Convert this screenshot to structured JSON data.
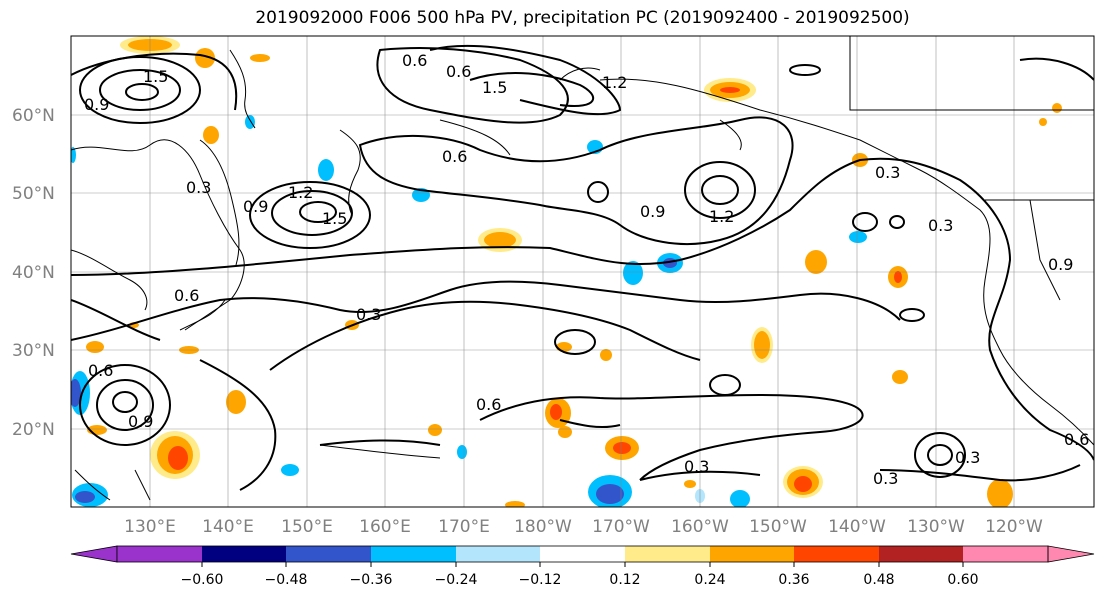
{
  "title": "2019092000 F006 500 hPa PV, precipitation PC (2019092400 - 2019092500)",
  "lat_labels": [
    "60°N",
    "50°N",
    "40°N",
    "30°N",
    "20°N"
  ],
  "lon_labels": [
    "130°E",
    "140°E",
    "150°E",
    "160°E",
    "170°E",
    "180°W",
    "170°W",
    "160°W",
    "150°W",
    "140°W",
    "130°W",
    "120°W"
  ],
  "colorbar": {
    "colors": [
      "#9933cc",
      "#000080",
      "#3355cc",
      "#00bfff",
      "#b3e5fc",
      "#ffffff",
      "#ffeb8a",
      "#ffa500",
      "#ff4500",
      "#b22222",
      "#ff88b0"
    ],
    "tick_labels": [
      "−0.60",
      "−0.48",
      "−0.36",
      "−0.24",
      "−0.12",
      "0.12",
      "0.24",
      "0.36",
      "0.48",
      "0.60"
    ]
  },
  "contour_labels": [
    "1.5",
    "0.9",
    "0.6",
    "0.6",
    "1.5",
    "1.2",
    "0.6",
    "0.3",
    "0.9",
    "1.2",
    "0.3",
    "1.2",
    "1.5",
    "0.9",
    "0.3",
    "0.6",
    "0.3",
    "0.6",
    "0.3",
    "0.3",
    "0.9",
    "0.6",
    "0.9",
    "0.3",
    "0.6"
  ],
  "colors": {
    "contour": "#000000",
    "coast": "#000000",
    "grid": "#808080"
  }
}
